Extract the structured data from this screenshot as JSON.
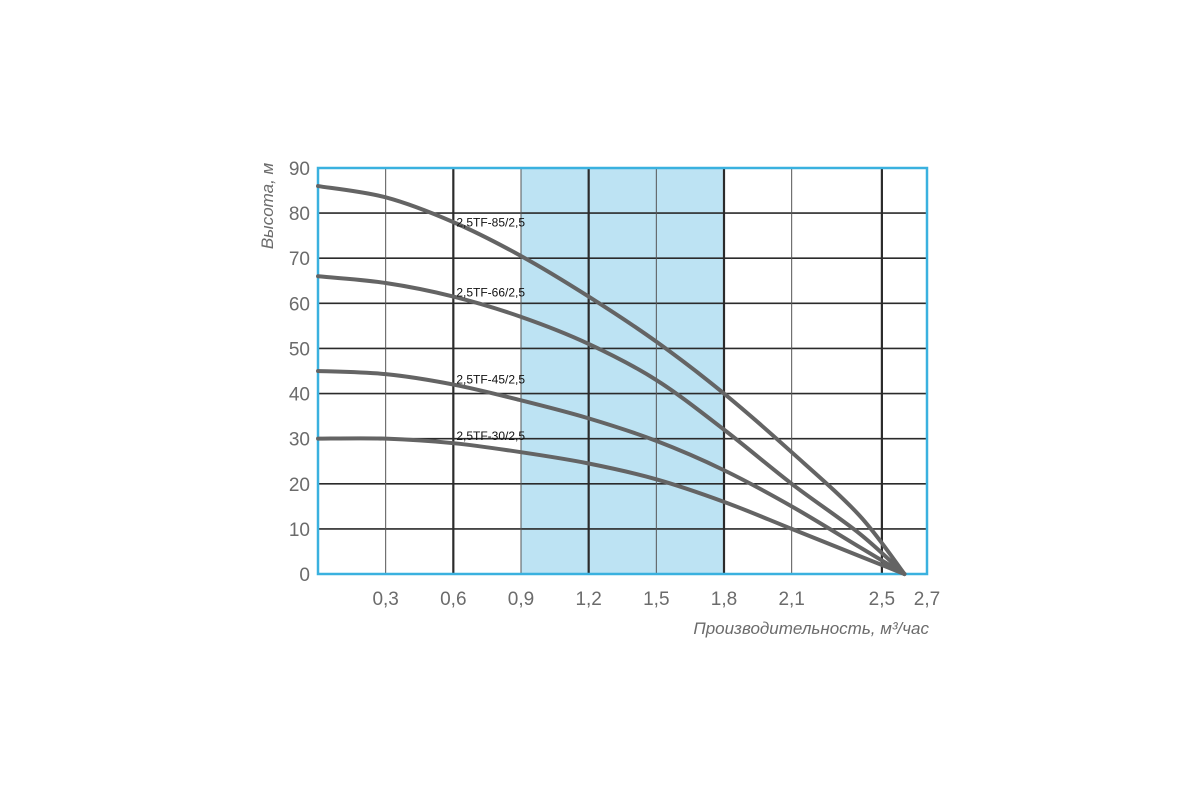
{
  "chart_data": {
    "type": "line",
    "title": "",
    "xlabel": "Производительность, м³/час",
    "ylabel": "Высота, м",
    "xlim": [
      0,
      2.7
    ],
    "ylim": [
      0,
      90
    ],
    "x_ticks": [
      0.3,
      0.6,
      0.9,
      1.2,
      1.5,
      1.8,
      2.1,
      2.5,
      2.7
    ],
    "x_tick_labels": [
      "0,3",
      "0,6",
      "0,9",
      "1,2",
      "1,5",
      "1,8",
      "2,1",
      "2,5",
      "2,7"
    ],
    "y_ticks": [
      0,
      10,
      20,
      30,
      40,
      50,
      60,
      70,
      80,
      90
    ],
    "y_tick_labels": [
      "0",
      "10",
      "20",
      "30",
      "40",
      "50",
      "60",
      "70",
      "80",
      "90"
    ],
    "grid": true,
    "highlight_band": {
      "x_from": 0.9,
      "x_to": 1.8,
      "color": "#bde3f3"
    },
    "colors": {
      "frame": "#3ab1df",
      "grid_major": "#2b2b2b",
      "grid_minor": "#555555",
      "curve": "#646464",
      "band": "#bde3f3"
    },
    "series": [
      {
        "name": "2,5TF-85/2,5",
        "x": [
          0,
          0.3,
          0.6,
          0.9,
          1.2,
          1.5,
          1.8,
          2.1,
          2.4,
          2.6
        ],
        "y": [
          86,
          83.5,
          78,
          70.5,
          61.5,
          51.5,
          40,
          27,
          13,
          0
        ]
      },
      {
        "name": "2,5TF-66/2,5",
        "x": [
          0,
          0.3,
          0.6,
          0.9,
          1.2,
          1.5,
          1.8,
          2.1,
          2.4,
          2.6
        ],
        "y": [
          66,
          64.5,
          61.5,
          57,
          51,
          43,
          32,
          20,
          9,
          0
        ]
      },
      {
        "name": "2,5TF-45/2,5",
        "x": [
          0,
          0.3,
          0.6,
          0.9,
          1.2,
          1.5,
          1.8,
          2.1,
          2.4,
          2.6
        ],
        "y": [
          45,
          44.3,
          42,
          38.5,
          34.5,
          29.5,
          23,
          15,
          6,
          0
        ]
      },
      {
        "name": "2,5TF-30/2,5",
        "x": [
          0,
          0.3,
          0.6,
          0.9,
          1.2,
          1.5,
          1.8,
          2.1,
          2.4,
          2.6
        ],
        "y": [
          30,
          30,
          29,
          27,
          24.5,
          21,
          16,
          10,
          4,
          0
        ]
      }
    ]
  }
}
